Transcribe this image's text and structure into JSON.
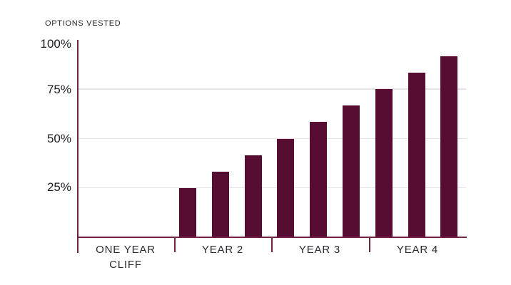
{
  "title": "OPTIONS VESTED",
  "colors": {
    "bar": "#570d31",
    "axis": "#722447",
    "gridline": "#e8e2e7",
    "title_text": "#27272c",
    "tick_text": "#1d1d22",
    "background": "#ffffff"
  },
  "chart_data": {
    "type": "bar",
    "title": "OPTIONS VESTED",
    "xlabel": "",
    "ylabel": "",
    "unit": "%",
    "ylim": [
      0,
      100
    ],
    "grid": "horizontal gridlines at 25, 50, 75 (none at 100)",
    "legend": "none",
    "y_ticks": [
      25,
      50,
      75,
      100
    ],
    "y_tick_labels": [
      "25%",
      "50%",
      "75%",
      "100%"
    ],
    "categories": [
      "ONE YEAR CLIFF",
      "YEAR 2",
      "YEAR 3",
      "YEAR 4"
    ],
    "x_labels": [
      {
        "line1": "ONE YEAR",
        "line2": "CLIFF"
      },
      {
        "line1": "YEAR 2",
        "line2": ""
      },
      {
        "line1": "YEAR 3",
        "line2": ""
      },
      {
        "line1": "YEAR 4",
        "line2": ""
      }
    ],
    "bars_per_category": [
      0,
      3,
      3,
      3
    ],
    "series": [
      {
        "name": "Options vested",
        "values": [
          25,
          33.33,
          41.67,
          50,
          58.33,
          66.67,
          75,
          83.33,
          91.67
        ]
      }
    ]
  }
}
